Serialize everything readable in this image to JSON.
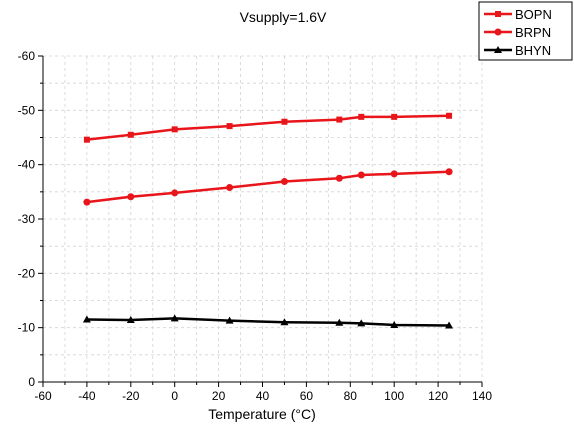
{
  "chart_data": {
    "type": "line",
    "title": "Vsupply=1.6V",
    "xlabel": "Temperature (°C)",
    "ylabel": "",
    "xlim": [
      -60,
      140
    ],
    "ylim": [
      0,
      -60
    ],
    "y_reversed": true,
    "xticks": [
      -60,
      -40,
      -20,
      0,
      20,
      40,
      60,
      80,
      100,
      120,
      140
    ],
    "yticks": [
      0,
      -10,
      -20,
      -30,
      -40,
      -50,
      -60
    ],
    "grid": true,
    "legend_position": "top-right",
    "x": [
      -40,
      -20,
      0,
      25,
      50,
      75,
      85,
      100,
      125
    ],
    "series": [
      {
        "name": "BOPN",
        "color": "#e8151b",
        "marker": "square",
        "values": [
          -44.6,
          -45.5,
          -46.5,
          -47.1,
          -47.9,
          -48.3,
          -48.8,
          -48.8,
          -49.0
        ]
      },
      {
        "name": "BRPN",
        "color": "#e8151b",
        "marker": "circle",
        "values": [
          -33.1,
          -34.1,
          -34.8,
          -35.8,
          -36.9,
          -37.5,
          -38.1,
          -38.3,
          -38.7
        ]
      },
      {
        "name": "BHYN",
        "color": "#000000",
        "marker": "triangle",
        "values": [
          -11.5,
          -11.4,
          -11.7,
          -11.3,
          -11.0,
          -10.9,
          -10.8,
          -10.5,
          -10.4
        ]
      }
    ]
  }
}
